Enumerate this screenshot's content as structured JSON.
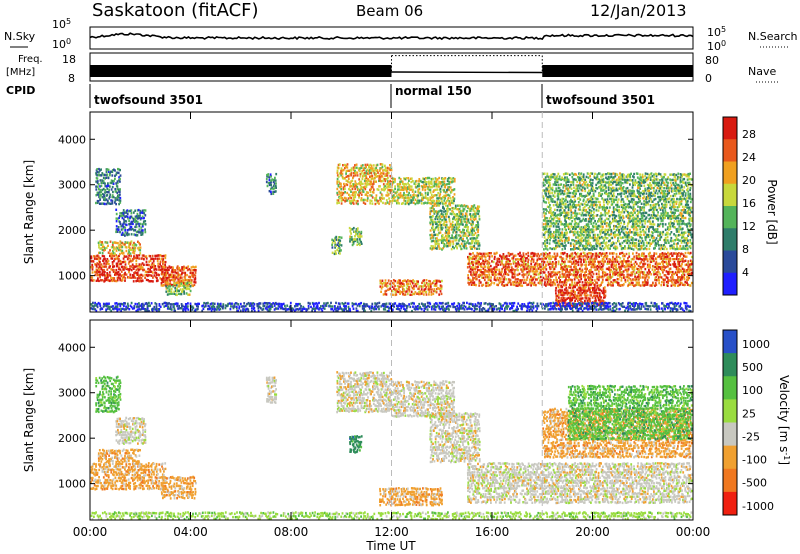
{
  "header": {
    "station": "Saskatoon (fitACF)",
    "beam": "Beam 06",
    "date": "12/Jan/2013"
  },
  "left_labels": {
    "nsky": "N.Sky",
    "freq": "Freq.",
    "freq_unit": "[MHz]",
    "cpid": "CPID"
  },
  "right_labels": {
    "nsearch": "N.Search",
    "nave": "Nave"
  },
  "cpid_segments": [
    {
      "name": "twofsound 3501",
      "start_hr": 0,
      "end_hr": 12
    },
    {
      "name": "normal 150",
      "start_hr": 12,
      "end_hr": 18
    },
    {
      "name": "twofsound 3501",
      "start_hr": 18,
      "end_hr": 24
    }
  ],
  "chart_data": [
    {
      "type": "line",
      "panel": "noise",
      "left_ticks": [
        "10^5",
        "10^0"
      ],
      "right_ticks": [
        "10^5",
        "10^0"
      ],
      "series": [
        {
          "name": "N.Sky"
        },
        {
          "name": "N.Search"
        }
      ]
    },
    {
      "type": "line",
      "panel": "frequency",
      "left_ticks": [
        "18",
        "8"
      ],
      "right_ticks": [
        "80",
        "0"
      ],
      "freq_bands": [
        {
          "start_hr": 0,
          "end_hr": 12,
          "mhz_low": 8,
          "mhz_high": 14
        },
        {
          "start_hr": 18,
          "end_hr": 24,
          "mhz_low": 8,
          "mhz_high": 14
        }
      ],
      "freq_normal": {
        "start_hr": 12,
        "end_hr": 18,
        "mhz": 10.5
      },
      "nave_dotted": {
        "start_hr": 12,
        "end_hr": 18,
        "value": 78
      }
    },
    {
      "type": "heatmap",
      "panel": "power",
      "ylabel": "Slant Range [km]",
      "yticks": [
        1000,
        2000,
        3000,
        4000
      ],
      "ylim": [
        200,
        4600
      ],
      "xlim": [
        0,
        24
      ],
      "colorbar_label": "Power [dB]",
      "colorbar_ticks": [
        4,
        8,
        12,
        16,
        20,
        24,
        28
      ],
      "colorbar_range": [
        0,
        31
      ],
      "colors": [
        "#1f1fff",
        "#2a4a9a",
        "#2f7d6a",
        "#54b45a",
        "#c8d83c",
        "#f0a020",
        "#e8581c",
        "#d81a10"
      ],
      "regions": [
        {
          "t0": 0.0,
          "t1": 3.0,
          "r0": 900,
          "r1": 1500,
          "level": 0.9
        },
        {
          "t0": 0.3,
          "t1": 2.0,
          "r0": 1500,
          "r1": 1800,
          "level": 0.6
        },
        {
          "t0": 2.8,
          "t1": 4.2,
          "r0": 800,
          "r1": 1250,
          "level": 0.85
        },
        {
          "t0": 0.2,
          "t1": 1.2,
          "r0": 2600,
          "r1": 3400,
          "level": 0.3
        },
        {
          "t0": 1.0,
          "t1": 2.2,
          "r0": 1900,
          "r1": 2500,
          "level": 0.25
        },
        {
          "t0": 3.0,
          "t1": 4.0,
          "r0": 600,
          "r1": 900,
          "level": 0.5
        },
        {
          "t0": 7.0,
          "t1": 7.4,
          "r0": 2800,
          "r1": 3300,
          "level": 0.3
        },
        {
          "t0": 9.8,
          "t1": 12.0,
          "r0": 2600,
          "r1": 3500,
          "level": 0.65
        },
        {
          "t0": 12.0,
          "t1": 14.5,
          "r0": 2600,
          "r1": 3200,
          "level": 0.55
        },
        {
          "t0": 13.5,
          "t1": 15.5,
          "r0": 1600,
          "r1": 2600,
          "level": 0.5
        },
        {
          "t0": 11.5,
          "t1": 14.0,
          "r0": 600,
          "r1": 950,
          "level": 0.75
        },
        {
          "t0": 15.0,
          "t1": 24.0,
          "r0": 800,
          "r1": 1550,
          "level": 0.8
        },
        {
          "t0": 18.5,
          "t1": 20.5,
          "r0": 350,
          "r1": 800,
          "level": 0.9
        },
        {
          "t0": 18.0,
          "t1": 24.0,
          "r0": 1600,
          "r1": 3300,
          "level": 0.45
        },
        {
          "t0": 0.0,
          "t1": 24.0,
          "r0": 220,
          "r1": 450,
          "level": 0.15
        },
        {
          "t0": 10.3,
          "t1": 10.8,
          "r0": 1700,
          "r1": 2100,
          "level": 0.45
        },
        {
          "t0": 9.6,
          "t1": 10.0,
          "r0": 1500,
          "r1": 1900,
          "level": 0.4
        }
      ]
    },
    {
      "type": "heatmap",
      "panel": "velocity",
      "ylabel": "Slant Range [km]",
      "yticks": [
        1000,
        2000,
        3000,
        4000
      ],
      "ylim": [
        200,
        4600
      ],
      "xlim": [
        0,
        24
      ],
      "xlabel": "Time UT",
      "xticks": [
        "00:00",
        "04:00",
        "08:00",
        "12:00",
        "16:00",
        "20:00",
        "00:00"
      ],
      "colorbar_label": "Velocity [m s^-1]",
      "colorbar_ticks": [
        "1000",
        "500",
        "100",
        "25",
        "-25",
        "-100",
        "-500",
        "-1000"
      ],
      "colors": [
        "#2850c8",
        "#2e8c5a",
        "#55c040",
        "#9adc40",
        "#c8c8c0",
        "#f0a030",
        "#f07820",
        "#f02010"
      ],
      "regions": [
        {
          "t0": 0.0,
          "t1": 3.0,
          "r0": 900,
          "r1": 1500,
          "vel": 5
        },
        {
          "t0": 0.3,
          "t1": 2.0,
          "r0": 1500,
          "r1": 1800,
          "vel": 5
        },
        {
          "t0": 2.8,
          "t1": 4.2,
          "r0": 700,
          "r1": 1200,
          "vel": 5
        },
        {
          "t0": 0.2,
          "t1": 1.2,
          "r0": 2600,
          "r1": 3400,
          "vel": 2
        },
        {
          "t0": 1.0,
          "t1": 2.2,
          "r0": 1900,
          "r1": 2500,
          "vel": 4
        },
        {
          "t0": 7.0,
          "t1": 7.4,
          "r0": 2800,
          "r1": 3400,
          "vel": 4
        },
        {
          "t0": 9.8,
          "t1": 12.0,
          "r0": 2600,
          "r1": 3500,
          "vel": 4
        },
        {
          "t0": 12.0,
          "t1": 14.5,
          "r0": 2500,
          "r1": 3300,
          "vel": 4
        },
        {
          "t0": 13.5,
          "t1": 15.5,
          "r0": 1500,
          "r1": 2600,
          "vel": 4
        },
        {
          "t0": 11.5,
          "t1": 14.0,
          "r0": 550,
          "r1": 950,
          "vel": 5
        },
        {
          "t0": 15.0,
          "t1": 24.0,
          "r0": 600,
          "r1": 1500,
          "vel": 4
        },
        {
          "t0": 18.0,
          "t1": 24.0,
          "r0": 1600,
          "r1": 2700,
          "vel": 5
        },
        {
          "t0": 19.0,
          "t1": 24.0,
          "r0": 2000,
          "r1": 3200,
          "vel": 2
        },
        {
          "t0": 0.0,
          "t1": 24.0,
          "r0": 220,
          "r1": 420,
          "vel": 3
        },
        {
          "t0": 10.3,
          "t1": 10.8,
          "r0": 1700,
          "r1": 2100,
          "vel": 1
        }
      ]
    }
  ]
}
